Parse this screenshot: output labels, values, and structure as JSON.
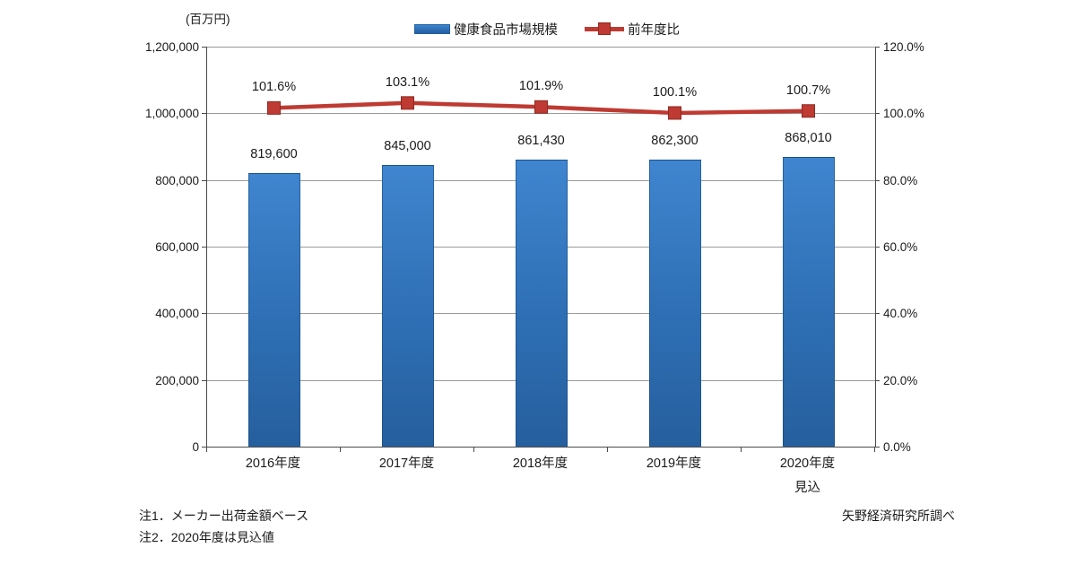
{
  "unit_label": "(百万円)",
  "legend": {
    "bars_label": "健康食品市場規模",
    "line_label": "前年度比"
  },
  "notes": {
    "note1": "注1．メーカー出荷金額ベース",
    "note2": "注2．2020年度は見込値"
  },
  "source": "矢野経済研究所調べ",
  "colors": {
    "bar_top": "#3f85cf",
    "bar_mid": "#2e6fb4",
    "bar_bottom": "#265f9e",
    "line": "#be3a32",
    "line_border": "#8e2a23",
    "grid": "#9a9a9a",
    "axis": "#4a4a4a",
    "text": "#1a1a1a"
  },
  "chart_data": {
    "type": "bar+line",
    "categories": [
      "2016年度",
      "2017年度",
      "2018年度",
      "2019年度",
      "2020年度"
    ],
    "category_sublabels": [
      "",
      "",
      "",
      "",
      "見込"
    ],
    "series": [
      {
        "name": "健康食品市場規模",
        "type": "bar",
        "axis": "left",
        "values": [
          819600,
          845000,
          861430,
          862300,
          868010
        ],
        "labels": [
          "819,600",
          "845,000",
          "861,430",
          "862,300",
          "868,010"
        ]
      },
      {
        "name": "前年度比",
        "type": "line",
        "axis": "right",
        "values": [
          101.6,
          103.1,
          101.9,
          100.1,
          100.7
        ],
        "labels": [
          "101.6%",
          "103.1%",
          "101.9%",
          "100.1%",
          "100.7%"
        ]
      }
    ],
    "left_axis": {
      "unit": "百万円",
      "min": 0,
      "max": 1200000,
      "step": 200000
    },
    "right_axis": {
      "min": 0,
      "max": 120,
      "step": 20,
      "format": "percent",
      "suffix": "%"
    },
    "grid": true,
    "legend_position": "top"
  }
}
